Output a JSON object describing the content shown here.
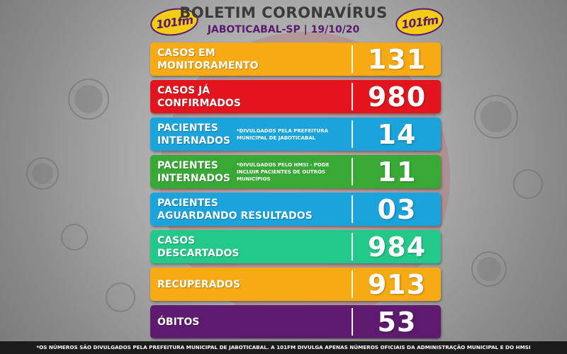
{
  "header": {
    "title": "BOLETIM CORONAVÍRUS",
    "subtitle": "JABOTICABAL-SP | 19/10/20",
    "logo_text": "101fm"
  },
  "colors": {
    "orange": "#f7aa14",
    "red": "#e3141e",
    "blue": "#1ba3dc",
    "green": "#39a935",
    "teal": "#23c98a",
    "purple": "#5d1a6e"
  },
  "rows": [
    {
      "label_line1": "CASOS EM",
      "label_line2": "MONITORAMENTO",
      "note": "",
      "value": "131",
      "color": "#f7aa14"
    },
    {
      "label_line1": "CASOS JÁ",
      "label_line2": "CONFIRMADOS",
      "note": "",
      "value": "980",
      "color": "#e3141e"
    },
    {
      "label_line1": "PACIENTES",
      "label_line2": "INTERNADOS",
      "note": "*DIVULGADOS PELA PREFEITURA MUNICIPAL DE JABOTICABAL",
      "value": "14",
      "color": "#1ba3dc"
    },
    {
      "label_line1": "PACIENTES",
      "label_line2": "INTERNADOS",
      "note": "*DIVULGADOS PELO HMSI - PODE INCLUIR PACIENTES DE OUTROS MUNICÍPIOS",
      "value": "11",
      "color": "#39a935"
    },
    {
      "label_line1": "PACIENTES",
      "label_line2": "AGUARDANDO RESULTADOS",
      "note": "",
      "value": "03",
      "color": "#1ba3dc"
    },
    {
      "label_line1": "CASOS",
      "label_line2": "DESCARTADOS",
      "note": "",
      "value": "984",
      "color": "#23c98a"
    },
    {
      "label_line1": "RECUPERADOS",
      "label_line2": "",
      "note": "",
      "value": "913",
      "color": "#f7aa14"
    },
    {
      "label_line1": "ÓBITOS",
      "label_line2": "",
      "note": "",
      "value": "53",
      "color": "#5d1a6e"
    }
  ],
  "footer": {
    "text": "*OS NÚMEROS SÃO DIVULGADOS PELA PREFEITURA MUNICIPAL DE JABOTICABAL. A 101FM DIVULGA APENAS NÚMEROS OFICIAIS DA ADMINISTRAÇÃO MUNICIPAL E DO HMSI"
  }
}
